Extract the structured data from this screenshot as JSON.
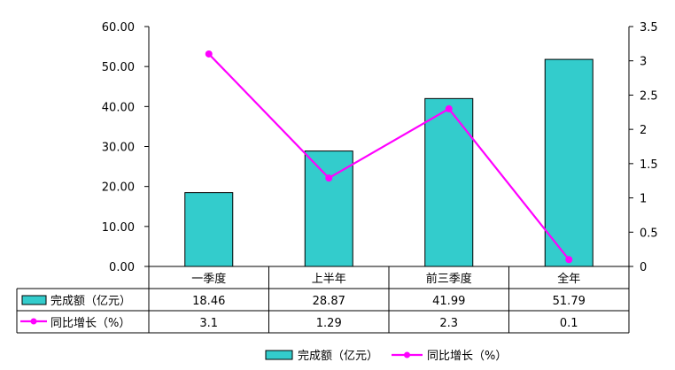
{
  "chart_data": {
    "type": "bar",
    "categories": [
      "一季度",
      "上半年",
      "前三季度",
      "全年"
    ],
    "series": [
      {
        "name": "完成额（亿元）",
        "type": "bar",
        "axis": "left",
        "values": [
          18.46,
          28.87,
          41.99,
          51.79
        ],
        "labels": [
          "18.46",
          "28.87",
          "41.99",
          "51.79"
        ],
        "color": "#33CCCC"
      },
      {
        "name": "同比增长（%）",
        "type": "line",
        "axis": "right",
        "values": [
          3.1,
          1.29,
          2.3,
          0.1
        ],
        "labels": [
          "3.1",
          "1.29",
          "2.3",
          "0.1"
        ],
        "color": "#FF00FF"
      }
    ],
    "y_left": {
      "ylim": [
        0,
        60
      ],
      "ticks": [
        0,
        10,
        20,
        30,
        40,
        50,
        60
      ],
      "tick_labels": [
        "0.00",
        "10.00",
        "20.00",
        "30.00",
        "40.00",
        "50.00",
        "60.00"
      ]
    },
    "y_right": {
      "ylim": [
        0,
        3.5
      ],
      "ticks": [
        0,
        0.5,
        1,
        1.5,
        2,
        2.5,
        3,
        3.5
      ],
      "tick_labels": [
        "0",
        "0.5",
        "1",
        "1.5",
        "2",
        "2.5",
        "3",
        "3.5"
      ]
    },
    "grid": false,
    "data_table": true,
    "legend": {
      "position": "bottom",
      "entries": [
        "完成额（亿元）",
        "同比增长（%）"
      ]
    }
  }
}
